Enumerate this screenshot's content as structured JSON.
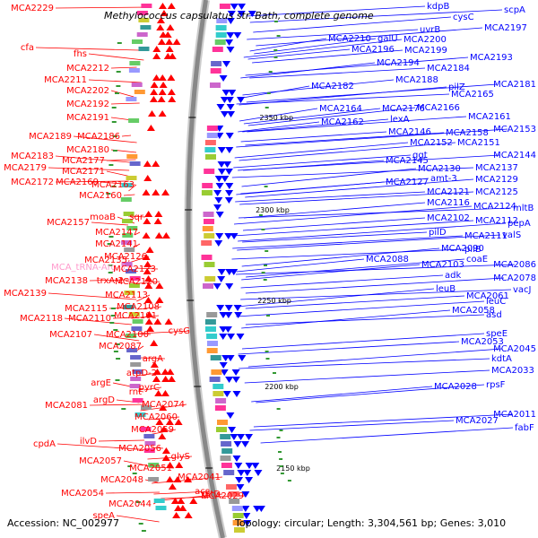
{
  "title": "Methylococcus capsulatus str. Bath, complete genome",
  "accession": "Accession: NC_002977",
  "topology": "Topology: circular; Length: 3,304,561 bp; Genes: 3,010",
  "colors": {
    "forward": "#ff0000",
    "reverse": "#0000ff",
    "rna": "#ff99cc",
    "backbone": "#888888"
  },
  "ticks": [
    "2350 kbp",
    "2300 kbp",
    "2250 kbp",
    "2200 kbp",
    "2150 kbp"
  ],
  "left_labels": [
    "MCA2229",
    "cfa",
    "fhs",
    "MCA2212",
    "MCA2211",
    "MCA2202",
    "MCA2192",
    "MCA2191",
    "MCA2189",
    "MCA2186",
    "MCA2180",
    "MCA2183",
    "MCA2177",
    "MCA2179",
    "MCA2171",
    "MCA2172",
    "MCA2169",
    "MCA2163",
    "MCA2160",
    "MCA2157",
    "moaB",
    "sqr",
    "MCA2147",
    "MCA2141",
    "MCA_tRNA-Arg-3",
    "MCA2135",
    "MCA2139",
    "MCA2138",
    "trxA-2",
    "MCA2126",
    "MCA2123",
    "MCA2120",
    "MCA2113",
    "MCA2115",
    "MCA2108",
    "MCA2118",
    "MCA2110",
    "MCA2101",
    "MCA2107",
    "MCA2100",
    "cysG",
    "MCA2087",
    "argA",
    "atpD-2",
    "argE",
    "rnt",
    "pyrC",
    "MCA2074",
    "MCA2081",
    "argD",
    "cpdA",
    "ilvD",
    "MCA2060",
    "MCA2059",
    "MCA2056",
    "glyS",
    "MCA2057",
    "MCA2051",
    "MCA2048",
    "MCA2041",
    "MCA2054",
    "acs",
    "gltD",
    "MCA2044",
    "MCA2029",
    "speA"
  ],
  "right_labels": [
    "kdpB",
    "scpA",
    "cysC",
    "MCA2197",
    "uvrB",
    "MCA2210",
    "galU",
    "MCA2200",
    "MCA2196",
    "MCA2199",
    "MCA2194",
    "MCA2193",
    "MCA2184",
    "MCA2182",
    "MCA2188",
    "MCA2181",
    "MCA2165",
    "MCA2164",
    "MCA2176",
    "MCA2166",
    "MCA2162",
    "lexA",
    "MCA2161",
    "MCA2153",
    "MCA2146",
    "MCA2158",
    "MCA2152",
    "MCA2151",
    "MCA2145",
    "ggt",
    "MCA2144",
    "MCA2130",
    "MCA2137",
    "MCA2127",
    "amt-3",
    "MCA2129",
    "MCA2121",
    "MCA2125",
    "MCA2116",
    "MCA2124",
    "mltB",
    "MCA2102",
    "MCA2112",
    "pepA",
    "pilD",
    "MCA2111",
    "valS",
    "MCA2090",
    "pilB",
    "MCA2088",
    "MCA2103",
    "coaE",
    "MCA2086",
    "adk",
    "MCA2078",
    "leuB",
    "vacJ",
    "MCA2061",
    "leuC",
    "MCA2058",
    "asd",
    "MCA2053",
    "speE",
    "MCA2045",
    "kdtA",
    "MCA2033",
    "MCA2028",
    "rpsF",
    "MCA2027",
    "MCA2011",
    "fabF",
    "pilZ"
  ]
}
